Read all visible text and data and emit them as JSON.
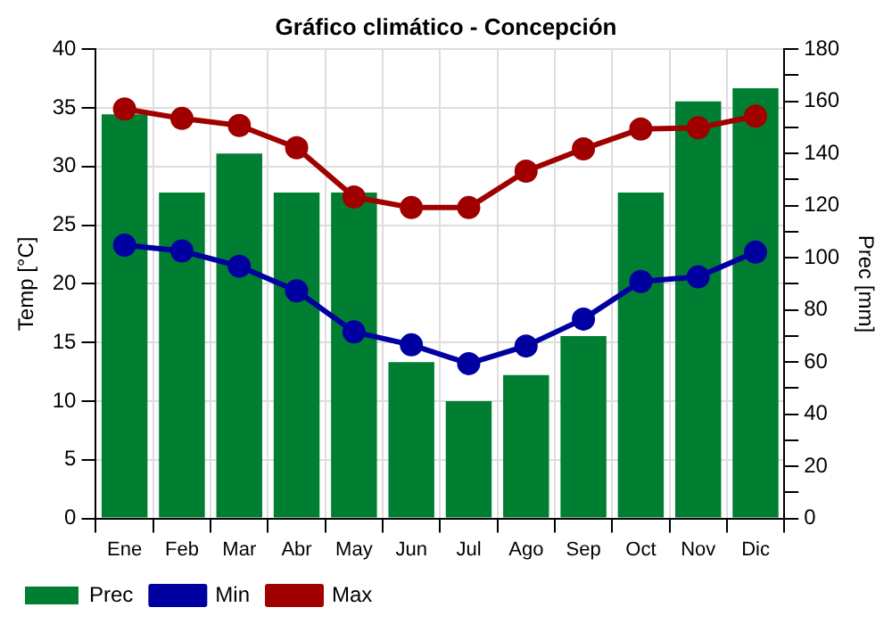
{
  "chart_data": {
    "type": "bar",
    "title": "Gráfico climático - Concepción",
    "ylabel": "Temp [°C]",
    "y2label": "Prec [mm]",
    "categories": [
      "Ene",
      "Feb",
      "Mar",
      "Abr",
      "May",
      "Jun",
      "Jul",
      "Ago",
      "Sep",
      "Oct",
      "Nov",
      "Dic"
    ],
    "series": [
      {
        "name": "Prec",
        "axis": "y2",
        "color": "#007e31",
        "values": [
          155,
          125,
          140,
          125,
          125,
          60,
          45,
          55,
          70,
          125,
          160,
          165
        ]
      },
      {
        "name": "Min",
        "type": "line",
        "color": "#0000a0",
        "values": [
          23.3,
          22.8,
          21.5,
          19.4,
          15.9,
          14.8,
          13.2,
          14.7,
          17.0,
          20.2,
          20.6,
          22.7
        ]
      },
      {
        "name": "Max",
        "type": "line",
        "color": "#a00000",
        "values": [
          34.9,
          34.1,
          33.5,
          31.6,
          27.4,
          26.5,
          26.5,
          29.6,
          31.5,
          33.2,
          33.3,
          34.3
        ]
      }
    ],
    "ylim": [
      0,
      40
    ],
    "yticks": [
      0,
      5,
      10,
      15,
      20,
      25,
      30,
      35,
      40
    ],
    "y2lim": [
      0,
      180
    ],
    "y2ticks": [
      0,
      {
        "value": 10,
        "label": null
      },
      20,
      {
        "value": 30,
        "label": null
      },
      40,
      {
        "value": 50,
        "label": null
      },
      60,
      {
        "value": 70,
        "label": null
      },
      80,
      {
        "value": 90,
        "label": null
      },
      100,
      {
        "value": 110,
        "label": null
      },
      120,
      {
        "value": 130,
        "label": null
      },
      140,
      {
        "value": 150,
        "label": null
      },
      160,
      {
        "value": 170,
        "label": null
      },
      180
    ],
    "grid": true,
    "legend": "bottom left",
    "marker": "circle",
    "line_style": "solid"
  }
}
